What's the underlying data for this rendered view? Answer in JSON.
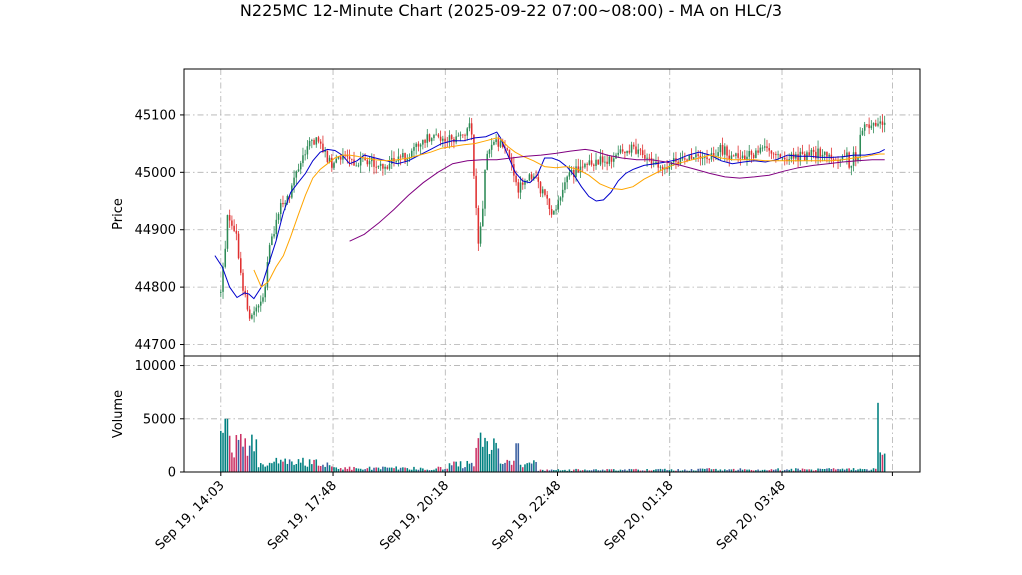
{
  "title": "N225MC 12-Minute Chart (2025-09-22 07:00~08:00) - MA on HLC/3",
  "chart_data": [
    {
      "type": "candlestick",
      "ylabel": "Price",
      "ylim": [
        44680,
        45180
      ],
      "yticks": [
        44700,
        44800,
        44900,
        45000,
        45100
      ],
      "grid": true,
      "up_color": "#2e8b57",
      "down_color": "#e03030",
      "ma_series": [
        {
          "color": "#0000cc",
          "values": [
            [
              0.042,
              44855
            ],
            [
              0.052,
              44835
            ],
            [
              0.062,
              44800
            ],
            [
              0.072,
              44782
            ],
            [
              0.082,
              44790
            ],
            [
              0.088,
              44788
            ],
            [
              0.095,
              44780
            ],
            [
              0.105,
              44800
            ],
            [
              0.115,
              44840
            ],
            [
              0.125,
              44880
            ],
            [
              0.135,
              44930
            ],
            [
              0.145,
              44965
            ],
            [
              0.155,
              44982
            ],
            [
              0.165,
              44998
            ],
            [
              0.175,
              45020
            ],
            [
              0.185,
              45035
            ],
            [
              0.195,
              45040
            ],
            [
              0.205,
              45038
            ],
            [
              0.215,
              45030
            ],
            [
              0.225,
              45015
            ],
            [
              0.235,
              45020
            ],
            [
              0.245,
              45030
            ],
            [
              0.26,
              45025
            ],
            [
              0.275,
              45020
            ],
            [
              0.29,
              45015
            ],
            [
              0.305,
              45020
            ],
            [
              0.32,
              45030
            ],
            [
              0.335,
              45040
            ],
            [
              0.35,
              45050
            ],
            [
              0.365,
              45055
            ],
            [
              0.38,
              45055
            ],
            [
              0.395,
              45060
            ],
            [
              0.41,
              45062
            ],
            [
              0.425,
              45070
            ],
            [
              0.43,
              45060
            ],
            [
              0.44,
              45030
            ],
            [
              0.45,
              45000
            ],
            [
              0.46,
              44985
            ],
            [
              0.47,
              44982
            ],
            [
              0.48,
              44995
            ],
            [
              0.49,
              45025
            ],
            [
              0.5,
              45025
            ],
            [
              0.51,
              45020
            ],
            [
              0.52,
              45010
            ],
            [
              0.53,
              44995
            ],
            [
              0.54,
              44975
            ],
            [
              0.55,
              44958
            ],
            [
              0.56,
              44950
            ],
            [
              0.57,
              44952
            ],
            [
              0.58,
              44965
            ],
            [
              0.59,
              44985
            ],
            [
              0.6,
              44998
            ],
            [
              0.61,
              45005
            ],
            [
              0.625,
              45012
            ],
            [
              0.64,
              45015
            ],
            [
              0.655,
              45018
            ],
            [
              0.67,
              45022
            ],
            [
              0.685,
              45030
            ],
            [
              0.7,
              45035
            ],
            [
              0.715,
              45030
            ],
            [
              0.73,
              45020
            ],
            [
              0.745,
              45015
            ],
            [
              0.76,
              45018
            ],
            [
              0.775,
              45020
            ],
            [
              0.79,
              45018
            ],
            [
              0.805,
              45022
            ],
            [
              0.82,
              45030
            ],
            [
              0.835,
              45028
            ],
            [
              0.85,
              45028
            ],
            [
              0.865,
              45026
            ],
            [
              0.88,
              45026
            ],
            [
              0.895,
              45027
            ],
            [
              0.91,
              45030
            ],
            [
              0.925,
              45030
            ],
            [
              0.935,
              45032
            ],
            [
              0.945,
              45035
            ],
            [
              0.952,
              45040
            ]
          ]
        },
        {
          "color": "#ffa500",
          "values": [
            [
              0.095,
              44830
            ],
            [
              0.105,
              44800
            ],
            [
              0.115,
              44810
            ],
            [
              0.125,
              44835
            ],
            [
              0.135,
              44855
            ],
            [
              0.145,
              44888
            ],
            [
              0.155,
              44925
            ],
            [
              0.165,
              44960
            ],
            [
              0.175,
              44990
            ],
            [
              0.185,
              45005
            ],
            [
              0.195,
              45015
            ],
            [
              0.205,
              45025
            ],
            [
              0.215,
              45030
            ],
            [
              0.225,
              45030
            ],
            [
              0.235,
              45028
            ],
            [
              0.245,
              45025
            ],
            [
              0.26,
              45022
            ],
            [
              0.275,
              45020
            ],
            [
              0.29,
              45022
            ],
            [
              0.305,
              45025
            ],
            [
              0.32,
              45030
            ],
            [
              0.335,
              45035
            ],
            [
              0.35,
              45042
            ],
            [
              0.365,
              45045
            ],
            [
              0.38,
              45048
            ],
            [
              0.395,
              45050
            ],
            [
              0.41,
              45055
            ],
            [
              0.425,
              45060
            ],
            [
              0.43,
              45058
            ],
            [
              0.44,
              45045
            ],
            [
              0.45,
              45035
            ],
            [
              0.46,
              45028
            ],
            [
              0.475,
              45020
            ],
            [
              0.49,
              45010
            ],
            [
              0.505,
              45008
            ],
            [
              0.52,
              45010
            ],
            [
              0.535,
              45005
            ],
            [
              0.55,
              44995
            ],
            [
              0.565,
              44980
            ],
            [
              0.58,
              44972
            ],
            [
              0.595,
              44970
            ],
            [
              0.61,
              44975
            ],
            [
              0.625,
              44988
            ],
            [
              0.64,
              44998
            ],
            [
              0.655,
              45008
            ],
            [
              0.67,
              45015
            ],
            [
              0.685,
              45020
            ],
            [
              0.7,
              45025
            ],
            [
              0.715,
              45030
            ],
            [
              0.73,
              45025
            ],
            [
              0.745,
              45022
            ],
            [
              0.76,
              45022
            ],
            [
              0.775,
              45022
            ],
            [
              0.79,
              45020
            ],
            [
              0.805,
              45020
            ],
            [
              0.82,
              45020
            ],
            [
              0.835,
              45020
            ],
            [
              0.85,
              45020
            ],
            [
              0.865,
              45020
            ],
            [
              0.88,
              45020
            ],
            [
              0.895,
              45022
            ],
            [
              0.91,
              45025
            ],
            [
              0.925,
              45027
            ],
            [
              0.935,
              45030
            ],
            [
              0.945,
              45032
            ],
            [
              0.952,
              45032
            ]
          ]
        },
        {
          "color": "#800080",
          "values": [
            [
              0.225,
              44880
            ],
            [
              0.245,
              44892
            ],
            [
              0.265,
              44912
            ],
            [
              0.285,
              44935
            ],
            [
              0.305,
              44960
            ],
            [
              0.325,
              44982
            ],
            [
              0.345,
              45000
            ],
            [
              0.365,
              45015
            ],
            [
              0.385,
              45020
            ],
            [
              0.405,
              45022
            ],
            [
              0.425,
              45022
            ],
            [
              0.445,
              45025
            ],
            [
              0.465,
              45028
            ],
            [
              0.485,
              45030
            ],
            [
              0.505,
              45033
            ],
            [
              0.525,
              45037
            ],
            [
              0.545,
              45040
            ],
            [
              0.555,
              45038
            ],
            [
              0.575,
              45030
            ],
            [
              0.595,
              45025
            ],
            [
              0.615,
              45022
            ],
            [
              0.635,
              45022
            ],
            [
              0.655,
              45018
            ],
            [
              0.675,
              45012
            ],
            [
              0.695,
              45005
            ],
            [
              0.715,
              44998
            ],
            [
              0.735,
              44992
            ],
            [
              0.755,
              44990
            ],
            [
              0.775,
              44992
            ],
            [
              0.795,
              44995
            ],
            [
              0.815,
              45002
            ],
            [
              0.835,
              45008
            ],
            [
              0.855,
              45012
            ],
            [
              0.875,
              45015
            ],
            [
              0.895,
              45018
            ],
            [
              0.915,
              45020
            ],
            [
              0.935,
              45022
            ],
            [
              0.952,
              45022
            ]
          ]
        }
      ]
    },
    {
      "type": "bar",
      "ylabel": "Volume",
      "ylim": [
        0,
        10900
      ],
      "yticks": [
        0,
        5000,
        10000
      ],
      "grid": true
    }
  ],
  "xticks": {
    "labels": [
      "Sep 19, 14:03",
      "Sep 19, 17:48",
      "Sep 19, 20:18",
      "Sep 19, 22:48",
      "Sep 20, 01:18",
      "Sep 20, 03:48"
    ],
    "frac": [
      0.05,
      0.2025,
      0.355,
      0.5075,
      0.66,
      0.8125
    ]
  }
}
